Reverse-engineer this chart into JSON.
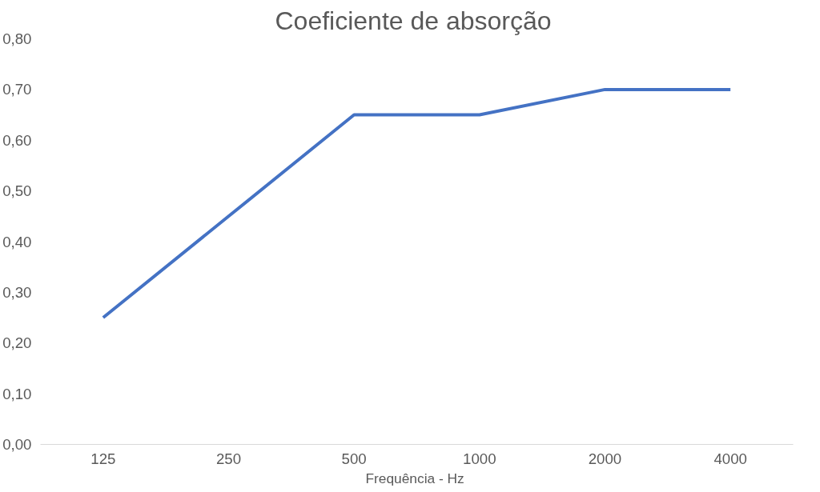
{
  "chart_data": {
    "type": "line",
    "title": "Coeficiente  de absorção",
    "xlabel": "Frequência  - Hz",
    "categories": [
      "125",
      "250",
      "500",
      "1000",
      "2000",
      "4000"
    ],
    "series": [
      {
        "color": "#4472c4",
        "values": [
          0.25,
          0.45,
          0.65,
          0.65,
          0.7,
          0.7
        ]
      }
    ],
    "ylim": [
      0,
      0.8
    ],
    "yticks": [
      {
        "value": 0,
        "label": "0,00"
      },
      {
        "value": 0.1,
        "label": "0,10"
      },
      {
        "value": 0.2,
        "label": "0,20"
      },
      {
        "value": 0.3,
        "label": "0,30"
      },
      {
        "value": 0.4,
        "label": "0,40"
      },
      {
        "value": 0.5,
        "label": "0,50"
      },
      {
        "value": 0.6,
        "label": "0,60"
      },
      {
        "value": 0.7,
        "label": "0,70"
      },
      {
        "value": 0.8,
        "label": "0,80"
      }
    ],
    "grid": false,
    "marker": "none",
    "line_style": "solid"
  }
}
